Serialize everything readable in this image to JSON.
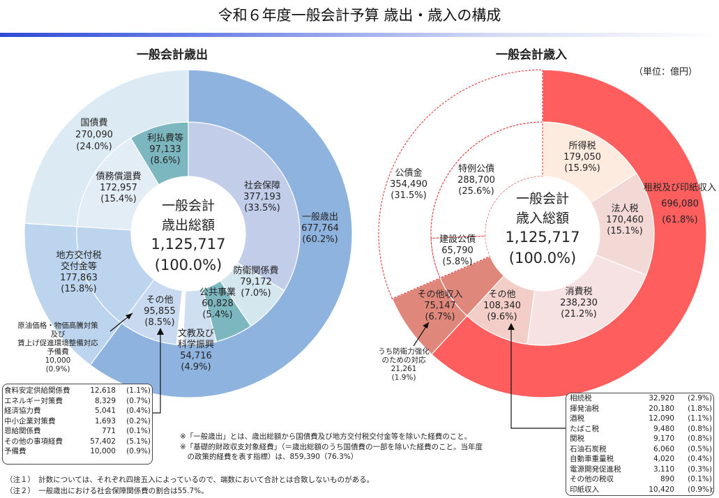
{
  "page": {
    "title": "令和６年度一般会計予算 歳出・歳入の構成",
    "unit": "（単位：億円）",
    "page_number": "0"
  },
  "colors": {
    "title_rule": "#2f4bd6",
    "exp_general": "#8fb3df",
    "exp_debt": "#dcebf3",
    "exp_local": "#bcd4ed",
    "exp_social": "#c1cde9",
    "exp_teal": "#7cb7bf",
    "rev_tax": "#ff5e5e",
    "rev_bond_outer": "#ffffff",
    "rev_other_outer": "#e0877c",
    "rev_income_tax": "#fdebe0",
    "rev_corp_tax": "#f3d9d6",
    "rev_consumption": "#f6e2e2",
    "rev_other_inner": "#f3cdc7"
  },
  "chart_data": [
    {
      "type": "pie",
      "title": "一般会計歳出",
      "center_label": [
        "一般会計",
        "歳出総額",
        "1,125,717",
        "(100.0%)"
      ],
      "total": 1125717,
      "outer_ring": [
        {
          "name": "一般歳出",
          "value": 677764,
          "percent": "(60.2%)",
          "color": "#8fb3df"
        },
        {
          "name": "地方交付税交付金等",
          "value": 177863,
          "percent": "(15.8%)",
          "color": "#bcd4ed"
        },
        {
          "name": "国債費",
          "value": 270090,
          "percent": "(24.0%)",
          "color": "#dcebf3"
        }
      ],
      "inner_ring": [
        {
          "name": "社会保障",
          "value": 377193,
          "percent": "(33.5%)",
          "color": "#c1cde9"
        },
        {
          "name": "防衛関係費",
          "value": 79172,
          "percent": "(7.0%)",
          "color": "#d4e6ee"
        },
        {
          "name": "公共事業",
          "value": 60828,
          "percent": "(5.4%)",
          "color": "#7cb7bf"
        },
        {
          "name": "文教及び科学振興",
          "value": 54716,
          "percent": "(4.9%)",
          "color": "#cfdff2"
        },
        {
          "name": "原油価格・物価高騰対策及び賃上げ促進環境整備対応予備費",
          "value": 10000,
          "percent": "(0.9%)",
          "color": "#ffffff"
        },
        {
          "name": "その他",
          "value": 95855,
          "percent": "(8.5%)",
          "color": "#c9d9f0"
        },
        {
          "name": "地方交付税交付金等",
          "value": 177863,
          "percent": "(15.8%)",
          "color": "#bcd4ed"
        },
        {
          "name": "債務償還費",
          "value": 172957,
          "percent": "(15.4%)",
          "color": "#e3edf5"
        },
        {
          "name": "利払費等",
          "value": 97133,
          "percent": "(8.6%)",
          "color": "#7cb7bf"
        }
      ],
      "labels": {
        "general": [
          "一般歳出",
          "677,764",
          "(60.2%)"
        ],
        "local": [
          "地方交付税",
          "交付金等",
          "177,863",
          "(15.8%)"
        ],
        "debt": [
          "国債費",
          "270,090",
          "(24.0%)"
        ],
        "social": [
          "社会保障",
          "377,193",
          "(33.5%)"
        ],
        "defense": [
          "防衛関係費",
          "79,172",
          "(7.0%)"
        ],
        "public_works": [
          "公共事業",
          "60,828",
          "(5.4%)"
        ],
        "education": [
          "文教及び",
          "科学振興",
          "54,716",
          "(4.9%)"
        ],
        "other": [
          "その他",
          "95,855",
          "(8.5%)"
        ],
        "redemption": [
          "債務償還費",
          "172,957",
          "(15.4%)"
        ],
        "interest": [
          "利払費等",
          "97,133",
          "(8.6%)"
        ],
        "reserve": [
          "原油価格・物価高騰対策",
          "及び",
          "賃上げ促進環境整備対応",
          "予備費",
          "10,000",
          "(0.9%)"
        ]
      }
    },
    {
      "type": "pie",
      "title": "一般会計歳入",
      "center_label": [
        "一般会計",
        "歳入総額",
        "1,125,717",
        "(100.0%)"
      ],
      "total": 1125717,
      "outer_ring": [
        {
          "name": "租税及び印紙収入",
          "value": 696080,
          "percent": "(61.8%)",
          "color": "#ff5e5e"
        },
        {
          "name": "その他収入",
          "value": 75147,
          "percent": "(6.7%)",
          "color": "#e0877c"
        },
        {
          "name": "公債金",
          "value": 354490,
          "percent": "(31.5%)",
          "color": "#ffffff"
        }
      ],
      "inner_ring": [
        {
          "name": "所得税",
          "value": 179050,
          "percent": "(15.9%)",
          "color": "#fdebe0"
        },
        {
          "name": "法人税",
          "value": 170460,
          "percent": "(15.1%)",
          "color": "#f3d9d6"
        },
        {
          "name": "消費税",
          "value": 238230,
          "percent": "(21.2%)",
          "color": "#f6e2e2"
        },
        {
          "name": "その他",
          "value": 108340,
          "percent": "(9.6%)",
          "color": "#f3cdc7"
        },
        {
          "name": "その他収入",
          "value": 75147,
          "percent": "(6.7%)",
          "color": "#e0877c"
        },
        {
          "name": "建設公債",
          "value": 65790,
          "percent": "(5.8%)",
          "color": "#ffffff"
        },
        {
          "name": "特例公債",
          "value": 288700,
          "percent": "(25.6%)",
          "color": "#ffffff"
        }
      ],
      "labels": {
        "tax": [
          "租税及び印紙収入",
          "696,080",
          "(61.8%)"
        ],
        "bonds": [
          "公債金",
          "354,490",
          "(31.5%)"
        ],
        "special_bonds": [
          "特例公債",
          "288,700",
          "(25.6%)"
        ],
        "construction_bonds": [
          "建設公債",
          "65,790",
          "(5.8%)"
        ],
        "income_tax": [
          "所得税",
          "179,050",
          "(15.9%)"
        ],
        "corp_tax": [
          "法人税",
          "170,460",
          "(15.1%)"
        ],
        "consumption_tax": [
          "消費税",
          "238,230",
          "(21.2%)"
        ],
        "other_tax": [
          "その他",
          "108,340",
          "(9.6%)"
        ],
        "other_revenue": [
          "その他収入",
          "75,147",
          "(6.7%)"
        ],
        "defense_fund": [
          "うち防衛力強化",
          "のための対応",
          "21,261",
          "(1.9%)"
        ]
      }
    }
  ],
  "exp_breakdown": [
    {
      "name": "食料安定供給関係費",
      "value": "12,618",
      "percent": "(1.1%)"
    },
    {
      "name": "エネルギー対策費",
      "value": "8,329",
      "percent": "(0.7%)"
    },
    {
      "name": "経済協力費",
      "value": "5,041",
      "percent": "(0.4%)"
    },
    {
      "name": "中小企業対策費",
      "value": "1,693",
      "percent": "(0.2%)"
    },
    {
      "name": "恩給関係費",
      "value": "771",
      "percent": "(0.1%)"
    },
    {
      "name": "その他の事項経費",
      "value": "57,402",
      "percent": "(5.1%)"
    },
    {
      "name": "予備費",
      "value": "10,000",
      "percent": "(0.9%)"
    }
  ],
  "rev_breakdown": [
    {
      "name": "相続税",
      "value": "32,920",
      "percent": "(2.9%)"
    },
    {
      "name": "揮発油税",
      "value": "20,180",
      "percent": "(1.8%)"
    },
    {
      "name": "酒税",
      "value": "12,090",
      "percent": "(1.1%)"
    },
    {
      "name": "たばこ税",
      "value": "9,480",
      "percent": "(0.8%)"
    },
    {
      "name": "関税",
      "value": "9,170",
      "percent": "(0.8%)"
    },
    {
      "name": "石油石炭税",
      "value": "6,060",
      "percent": "(0.5%)"
    },
    {
      "name": "自動車重量税",
      "value": "4,020",
      "percent": "(0.4%)"
    },
    {
      "name": "電源開発促進税",
      "value": "3,110",
      "percent": "(0.3%)"
    },
    {
      "name": "その他の税収",
      "value": "890",
      "percent": "(0.1%)"
    },
    {
      "name": "印紙収入",
      "value": "10,420",
      "percent": "(0.9%)"
    }
  ],
  "notes": [
    "※「一般歳出」とは、歳出総額から国債費及び地方交付税交付金等を除いた経費のこと。",
    "※「基礎的財政収支対象経費」（＝歳出総額のうち国債費の一部を除いた経費のこと。当年度",
    "　の政策的経費を表す指標）は、859,390（76.3%）"
  ],
  "footnotes": [
    "（注１）　計数については、それぞれ四捨五入によっているので、端数において合計とは合致しないものがある。",
    "（注２）　一般歳出における社会保障関係費の割合は55.7%。"
  ]
}
